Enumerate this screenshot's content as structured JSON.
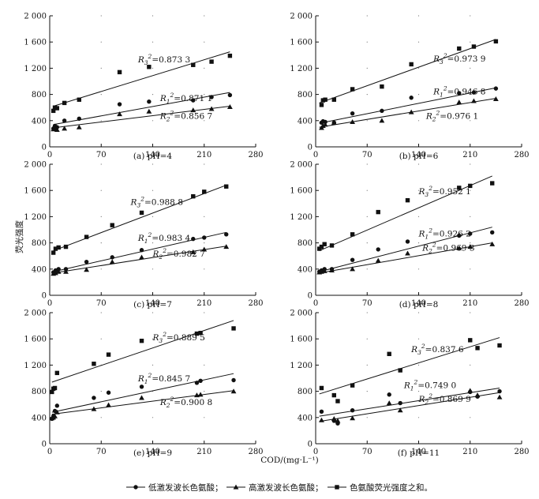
{
  "figure": {
    "ylabel": "荧光强度",
    "xlabel": "COD/(mg·L⁻¹)",
    "legend": [
      "低激发波长色氨酸；",
      "高激发波长色氨酸；",
      "色氨酸荧光强度之和。"
    ]
  },
  "chart_data": [
    {
      "type": "scatter",
      "title": "(a) pH=4",
      "ylim": [
        0,
        2000
      ],
      "xlim": [
        0,
        280
      ],
      "yticks": [
        "0",
        "400",
        "800",
        "1 200",
        "1 600",
        "2 000"
      ],
      "xticks": [
        "0",
        "70",
        "140",
        "210",
        "280"
      ],
      "grid": false,
      "series": [
        {
          "name": "低激发波长色氨酸",
          "marker": "circle",
          "x": [
            5,
            7,
            10,
            20,
            40,
            95,
            135,
            195,
            220,
            245
          ],
          "y": [
            280,
            320,
            300,
            400,
            430,
            650,
            690,
            710,
            760,
            790
          ],
          "fit": {
            "x": [
              5,
              245
            ],
            "y": [
              340,
              830
            ]
          },
          "r2": "0.871 1"
        },
        {
          "name": "高激发波长色氨酸",
          "marker": "triangle",
          "x": [
            5,
            7,
            10,
            20,
            40,
            95,
            135,
            195,
            220,
            245
          ],
          "y": [
            270,
            280,
            260,
            280,
            300,
            500,
            540,
            560,
            580,
            610
          ],
          "fit": {
            "x": [
              5,
              245
            ],
            "y": [
              290,
              620
            ]
          },
          "r2": "0.856 7"
        },
        {
          "name": "色氨酸荧光强度之和",
          "marker": "square",
          "x": [
            5,
            7,
            10,
            20,
            40,
            95,
            135,
            195,
            220,
            245
          ],
          "y": [
            550,
            600,
            590,
            670,
            720,
            1140,
            1220,
            1250,
            1300,
            1390
          ],
          "fit": {
            "x": [
              5,
              245
            ],
            "y": [
              620,
              1450
            ]
          },
          "r2": "0.873 3"
        }
      ]
    },
    {
      "type": "scatter",
      "title": "(b) pH=6",
      "ylim": [
        0,
        2000
      ],
      "xlim": [
        0,
        280
      ],
      "yticks": [
        "0",
        "400",
        "800",
        "1 200",
        "1 600",
        "2 000"
      ],
      "xticks": [
        "0",
        "70",
        "140",
        "210",
        "280"
      ],
      "grid": false,
      "series": [
        {
          "name": "低激发波长色氨酸",
          "marker": "circle",
          "x": [
            8,
            10,
            13,
            25,
            50,
            90,
            130,
            195,
            215,
            245
          ],
          "y": [
            370,
            390,
            380,
            370,
            510,
            550,
            750,
            820,
            830,
            890
          ],
          "fit": {
            "x": [
              5,
              245
            ],
            "y": [
              360,
              900
            ]
          },
          "r2": "0.946 8"
        },
        {
          "name": "高激发波长色氨酸",
          "marker": "triangle",
          "x": [
            8,
            10,
            13,
            25,
            50,
            90,
            130,
            195,
            215,
            245
          ],
          "y": [
            290,
            320,
            340,
            370,
            380,
            400,
            530,
            680,
            700,
            730
          ],
          "fit": {
            "x": [
              5,
              245
            ],
            "y": [
              300,
              740
            ]
          },
          "r2": "0.976 1"
        },
        {
          "name": "色氨酸荧光强度之和",
          "marker": "square",
          "x": [
            8,
            10,
            13,
            25,
            50,
            90,
            130,
            195,
            215,
            245
          ],
          "y": [
            640,
            710,
            720,
            720,
            880,
            920,
            1260,
            1500,
            1530,
            1610
          ],
          "fit": {
            "x": [
              5,
              245
            ],
            "y": [
              670,
              1640
            ]
          },
          "r2": "0.973 9"
        }
      ]
    },
    {
      "type": "scatter",
      "title": "(c) pH=7",
      "ylim": [
        0,
        2000
      ],
      "xlim": [
        0,
        280
      ],
      "yticks": [
        "0",
        "400",
        "800",
        "1 200",
        "1 600",
        "2 000"
      ],
      "xticks": [
        "0",
        "70",
        "140",
        "210",
        "280"
      ],
      "grid": false,
      "series": [
        {
          "name": "低激发波长色氨酸",
          "marker": "circle",
          "x": [
            5,
            8,
            12,
            22,
            50,
            85,
            125,
            195,
            210,
            240
          ],
          "y": [
            350,
            380,
            400,
            400,
            510,
            580,
            690,
            860,
            880,
            930
          ],
          "fit": {
            "x": [
              5,
              240
            ],
            "y": [
              360,
              960
            ]
          },
          "r2": "0.983 4"
        },
        {
          "name": "高激发波长色氨酸",
          "marker": "triangle",
          "x": [
            5,
            8,
            12,
            22,
            50,
            85,
            125,
            195,
            210,
            240
          ],
          "y": [
            330,
            340,
            360,
            360,
            390,
            510,
            580,
            660,
            700,
            740
          ],
          "fit": {
            "x": [
              5,
              240
            ],
            "y": [
              340,
              750
            ]
          },
          "r2": "0.982 7"
        },
        {
          "name": "色氨酸荧光强度之和",
          "marker": "square",
          "x": [
            5,
            8,
            12,
            22,
            50,
            85,
            125,
            195,
            210,
            240
          ],
          "y": [
            650,
            710,
            730,
            740,
            890,
            1070,
            1260,
            1510,
            1580,
            1660
          ],
          "fit": {
            "x": [
              5,
              240
            ],
            "y": [
              680,
              1680
            ]
          },
          "r2": "0.988 8"
        }
      ]
    },
    {
      "type": "scatter",
      "title": "(d) pH=8",
      "ylim": [
        0,
        2000
      ],
      "xlim": [
        0,
        280
      ],
      "yticks": [
        "0",
        "400",
        "800",
        "1 200",
        "1 600",
        "2 000"
      ],
      "xticks": [
        "0",
        "70",
        "140",
        "210",
        "280"
      ],
      "grid": false,
      "series": [
        {
          "name": "低激发波长色氨酸",
          "marker": "circle",
          "x": [
            5,
            8,
            12,
            22,
            50,
            85,
            125,
            195,
            210,
            240
          ],
          "y": [
            360,
            380,
            400,
            400,
            540,
            700,
            820,
            910,
            940,
            960
          ],
          "fit": {
            "x": [
              5,
              240
            ],
            "y": [
              360,
              1040
            ]
          },
          "r2": "0.926 2"
        },
        {
          "name": "高激发波长色氨酸",
          "marker": "triangle",
          "x": [
            5,
            8,
            12,
            22,
            50,
            85,
            125,
            195,
            210,
            240
          ],
          "y": [
            350,
            360,
            370,
            380,
            400,
            530,
            640,
            720,
            740,
            780
          ],
          "fit": {
            "x": [
              5,
              240
            ],
            "y": [
              340,
              800
            ]
          },
          "r2": "0.969 3"
        },
        {
          "name": "色氨酸荧光强度之和",
          "marker": "square",
          "x": [
            5,
            8,
            12,
            22,
            50,
            85,
            125,
            195,
            210,
            240
          ],
          "y": [
            710,
            740,
            780,
            760,
            930,
            1270,
            1450,
            1640,
            1670,
            1710
          ],
          "fit": {
            "x": [
              5,
              240
            ],
            "y": [
              680,
              1820
            ]
          },
          "r2": "0.952 1"
        }
      ]
    },
    {
      "type": "scatter",
      "title": "(e) pH=9",
      "ylim": [
        0,
        2000
      ],
      "xlim": [
        0,
        280
      ],
      "yticks": [
        "0",
        "400",
        "800",
        "1 200",
        "1 600",
        "2 000"
      ],
      "xticks": [
        "0",
        "70",
        "140",
        "210",
        "280"
      ],
      "grid": false,
      "series": [
        {
          "name": "低激发波长色氨酸",
          "marker": "circle",
          "x": [
            3,
            5,
            7,
            10,
            60,
            80,
            125,
            200,
            205,
            250
          ],
          "y": [
            380,
            420,
            500,
            580,
            700,
            780,
            870,
            930,
            960,
            970
          ],
          "fit": {
            "x": [
              3,
              250
            ],
            "y": [
              480,
              1070
            ]
          },
          "r2": "0.845 7"
        },
        {
          "name": "高激发波长色氨酸",
          "marker": "triangle",
          "x": [
            3,
            5,
            7,
            10,
            60,
            80,
            125,
            200,
            205,
            250
          ],
          "y": [
            390,
            400,
            420,
            480,
            530,
            590,
            700,
            740,
            750,
            800
          ],
          "fit": {
            "x": [
              3,
              250
            ],
            "y": [
              450,
              810
            ]
          },
          "r2": "0.900 8"
        },
        {
          "name": "色氨酸荧光强度之和",
          "marker": "square",
          "x": [
            3,
            5,
            7,
            10,
            60,
            80,
            125,
            200,
            205,
            250
          ],
          "y": [
            790,
            840,
            850,
            1080,
            1220,
            1360,
            1570,
            1680,
            1690,
            1760
          ],
          "fit": {
            "x": [
              3,
              250
            ],
            "y": [
              940,
              1880
            ]
          },
          "r2": "0.889 5"
        }
      ]
    },
    {
      "type": "scatter",
      "title": "(f) pH=11",
      "ylim": [
        0,
        2000
      ],
      "xlim": [
        0,
        280
      ],
      "yticks": [
        "0",
        "400",
        "800",
        "1 200",
        "1 600",
        "2 000"
      ],
      "xticks": [
        "0",
        "70",
        "140",
        "210",
        "280"
      ],
      "grid": false,
      "series": [
        {
          "name": "低激发波长色氨酸",
          "marker": "circle",
          "x": [
            8,
            25,
            30,
            50,
            100,
            115,
            210,
            220,
            250
          ],
          "y": [
            490,
            350,
            310,
            510,
            750,
            620,
            790,
            720,
            800
          ],
          "fit": {
            "x": [
              5,
              250
            ],
            "y": [
              420,
              850
            ]
          },
          "r2": "0.749 0"
        },
        {
          "name": "高激发波长色氨酸",
          "marker": "triangle",
          "x": [
            8,
            25,
            30,
            50,
            100,
            115,
            210,
            220,
            250
          ],
          "y": [
            360,
            380,
            350,
            390,
            620,
            510,
            810,
            740,
            710
          ],
          "fit": {
            "x": [
              5,
              250
            ],
            "y": [
              340,
              780
            ]
          },
          "r2": "0.869 9"
        },
        {
          "name": "色氨酸荧光强度之和",
          "marker": "square",
          "x": [
            8,
            25,
            30,
            50,
            100,
            115,
            210,
            220,
            250
          ],
          "y": [
            850,
            740,
            650,
            890,
            1370,
            1120,
            1580,
            1460,
            1500
          ],
          "fit": {
            "x": [
              5,
              250
            ],
            "y": [
              760,
              1620
            ]
          },
          "r2": "0.837 6"
        }
      ]
    }
  ]
}
